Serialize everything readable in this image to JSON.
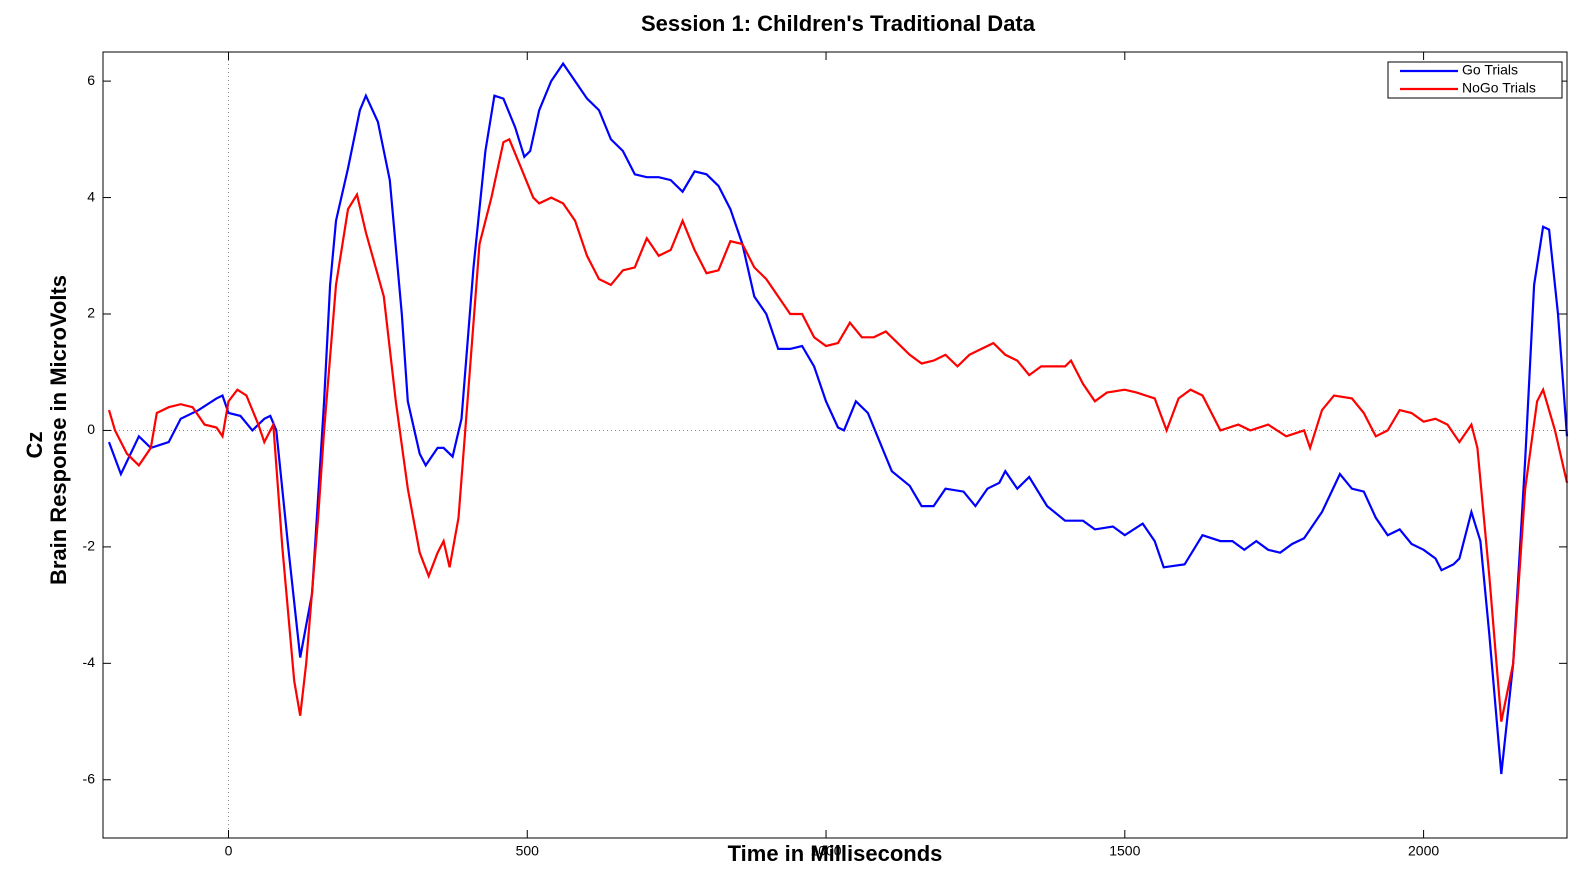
{
  "chart_data": {
    "type": "line",
    "title": "Session 1: Children's Traditional Data",
    "xlabel": "Time in Milliseconds",
    "ylabel": [
      "Cz",
      "Brain Response in MicroVolts"
    ],
    "xlim": [
      -210,
      2240
    ],
    "ylim": [
      -7,
      6.5
    ],
    "xticks": [
      0,
      500,
      1000,
      1500,
      2000
    ],
    "yticks": [
      -6,
      -4,
      -2,
      0,
      2,
      4,
      6
    ],
    "zero_lines": true,
    "legend": "upper right",
    "series": [
      {
        "name": "Go Trials",
        "color": "#0000ff",
        "x": [
          -200,
          -180,
          -150,
          -130,
          -100,
          -80,
          -50,
          -20,
          -10,
          0,
          20,
          40,
          60,
          70,
          80,
          100,
          120,
          140,
          160,
          170,
          180,
          200,
          220,
          230,
          250,
          270,
          290,
          300,
          320,
          330,
          350,
          360,
          375,
          390,
          410,
          430,
          445,
          460,
          480,
          495,
          505,
          520,
          540,
          560,
          580,
          600,
          620,
          640,
          660,
          680,
          700,
          720,
          740,
          760,
          780,
          800,
          820,
          840,
          860,
          880,
          900,
          920,
          940,
          960,
          980,
          1000,
          1020,
          1030,
          1050,
          1070,
          1090,
          1110,
          1140,
          1160,
          1180,
          1200,
          1230,
          1250,
          1270,
          1290,
          1300,
          1320,
          1340,
          1370,
          1400,
          1430,
          1450,
          1480,
          1500,
          1530,
          1550,
          1565,
          1600,
          1630,
          1660,
          1680,
          1700,
          1720,
          1740,
          1760,
          1780,
          1800,
          1830,
          1860,
          1880,
          1900,
          1920,
          1940,
          1960,
          1980,
          2000,
          2020,
          2030,
          2050,
          2060,
          2080,
          2095,
          2110,
          2130,
          2150,
          2170,
          2185,
          2200,
          2210,
          2225,
          2240
        ],
        "values": [
          -0.2,
          -0.75,
          -0.1,
          -0.3,
          -0.2,
          0.2,
          0.35,
          0.55,
          0.6,
          0.3,
          0.25,
          0.0,
          0.2,
          0.25,
          0.0,
          -2.0,
          -3.9,
          -2.8,
          0.5,
          2.5,
          3.6,
          4.5,
          5.5,
          5.75,
          5.3,
          4.3,
          2.0,
          0.5,
          -0.4,
          -0.6,
          -0.3,
          -0.3,
          -0.45,
          0.2,
          2.8,
          4.8,
          5.75,
          5.7,
          5.2,
          4.7,
          4.8,
          5.5,
          6.0,
          6.3,
          6.0,
          5.7,
          5.5,
          5.0,
          4.8,
          4.4,
          4.35,
          4.35,
          4.3,
          4.1,
          4.45,
          4.4,
          4.2,
          3.8,
          3.2,
          2.3,
          2.0,
          1.4,
          1.4,
          1.45,
          1.1,
          0.5,
          0.05,
          0.0,
          0.5,
          0.3,
          -0.2,
          -0.7,
          -0.95,
          -1.3,
          -1.3,
          -1.0,
          -1.05,
          -1.3,
          -1.0,
          -0.9,
          -0.7,
          -1.0,
          -0.8,
          -1.3,
          -1.55,
          -1.55,
          -1.7,
          -1.65,
          -1.8,
          -1.6,
          -1.9,
          -2.35,
          -2.3,
          -1.8,
          -1.9,
          -1.9,
          -2.05,
          -1.9,
          -2.05,
          -2.1,
          -1.95,
          -1.85,
          -1.4,
          -0.75,
          -1.0,
          -1.05,
          -1.5,
          -1.8,
          -1.7,
          -1.95,
          -2.05,
          -2.2,
          -2.4,
          -2.3,
          -2.2,
          -1.4,
          -1.9,
          -3.5,
          -5.9,
          -4.0,
          -0.5,
          2.5,
          3.5,
          3.45,
          2.0,
          -0.1
        ]
      },
      {
        "name": "NoGo Trials",
        "color": "#ff0000",
        "x": [
          -200,
          -190,
          -170,
          -150,
          -130,
          -120,
          -100,
          -80,
          -60,
          -40,
          -20,
          -10,
          0,
          15,
          30,
          50,
          60,
          75,
          90,
          110,
          120,
          130,
          150,
          160,
          180,
          200,
          215,
          230,
          260,
          280,
          300,
          320,
          335,
          350,
          360,
          370,
          385,
          400,
          420,
          440,
          460,
          470,
          490,
          510,
          520,
          540,
          560,
          580,
          600,
          620,
          640,
          660,
          680,
          700,
          720,
          740,
          760,
          780,
          800,
          820,
          840,
          860,
          880,
          900,
          920,
          940,
          960,
          980,
          1000,
          1020,
          1040,
          1060,
          1080,
          1100,
          1120,
          1140,
          1160,
          1180,
          1200,
          1220,
          1240,
          1260,
          1280,
          1300,
          1320,
          1340,
          1360,
          1380,
          1400,
          1410,
          1430,
          1450,
          1470,
          1500,
          1520,
          1550,
          1570,
          1590,
          1610,
          1630,
          1660,
          1690,
          1710,
          1740,
          1770,
          1800,
          1810,
          1830,
          1850,
          1880,
          1900,
          1920,
          1940,
          1960,
          1980,
          2000,
          2020,
          2040,
          2060,
          2080,
          2090,
          2110,
          2130,
          2150,
          2170,
          2190,
          2200,
          2220,
          2240
        ],
        "values": [
          0.35,
          0.0,
          -0.4,
          -0.6,
          -0.3,
          0.3,
          0.4,
          0.45,
          0.4,
          0.1,
          0.05,
          -0.1,
          0.5,
          0.7,
          0.6,
          0.1,
          -0.2,
          0.1,
          -2.0,
          -4.3,
          -4.9,
          -4.0,
          -1.5,
          0.0,
          2.5,
          3.8,
          4.05,
          3.4,
          2.3,
          0.5,
          -1.0,
          -2.1,
          -2.5,
          -2.1,
          -1.9,
          -2.35,
          -1.5,
          0.5,
          3.2,
          4.0,
          4.95,
          5.0,
          4.5,
          4.0,
          3.9,
          4.0,
          3.9,
          3.6,
          3.0,
          2.6,
          2.5,
          2.75,
          2.8,
          3.3,
          3.0,
          3.1,
          3.6,
          3.1,
          2.7,
          2.75,
          3.25,
          3.2,
          2.8,
          2.6,
          2.3,
          2.0,
          2.0,
          1.6,
          1.45,
          1.5,
          1.85,
          1.6,
          1.6,
          1.7,
          1.5,
          1.3,
          1.15,
          1.2,
          1.3,
          1.1,
          1.3,
          1.4,
          1.5,
          1.3,
          1.2,
          0.95,
          1.1,
          1.1,
          1.1,
          1.2,
          0.8,
          0.5,
          0.65,
          0.7,
          0.65,
          0.55,
          0.0,
          0.55,
          0.7,
          0.6,
          0.0,
          0.1,
          0.0,
          0.1,
          -0.1,
          0.0,
          -0.3,
          0.35,
          0.6,
          0.55,
          0.3,
          -0.1,
          0.0,
          0.35,
          0.3,
          0.15,
          0.2,
          0.1,
          -0.2,
          0.1,
          -0.3,
          -2.5,
          -5.0,
          -4.0,
          -1.0,
          0.5,
          0.7,
          0.0,
          -0.9
        ]
      }
    ]
  }
}
